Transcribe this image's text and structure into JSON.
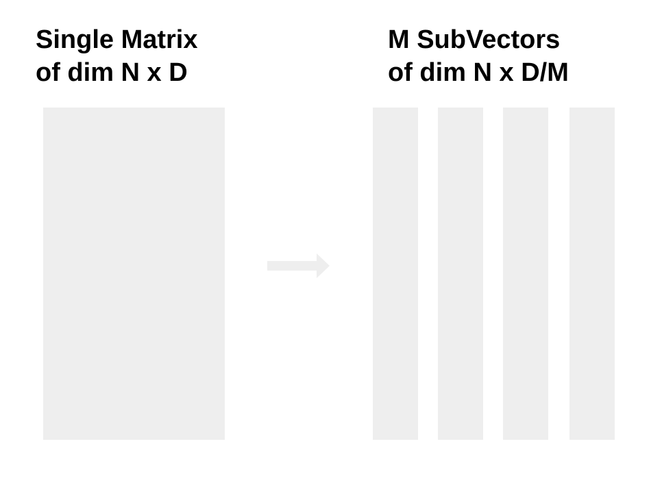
{
  "left_title": {
    "line1": "Single Matrix",
    "line2": "of dim N x D"
  },
  "right_title": {
    "line1": "M SubVectors",
    "line2": "of dim N x D/M"
  },
  "colors": {
    "block_fill": "#eeeeee",
    "arrow_fill": "#eeeeee",
    "text": "#000000",
    "background": "#ffffff"
  },
  "subvector_count": 4,
  "arrow_icon": "right-arrow-icon"
}
